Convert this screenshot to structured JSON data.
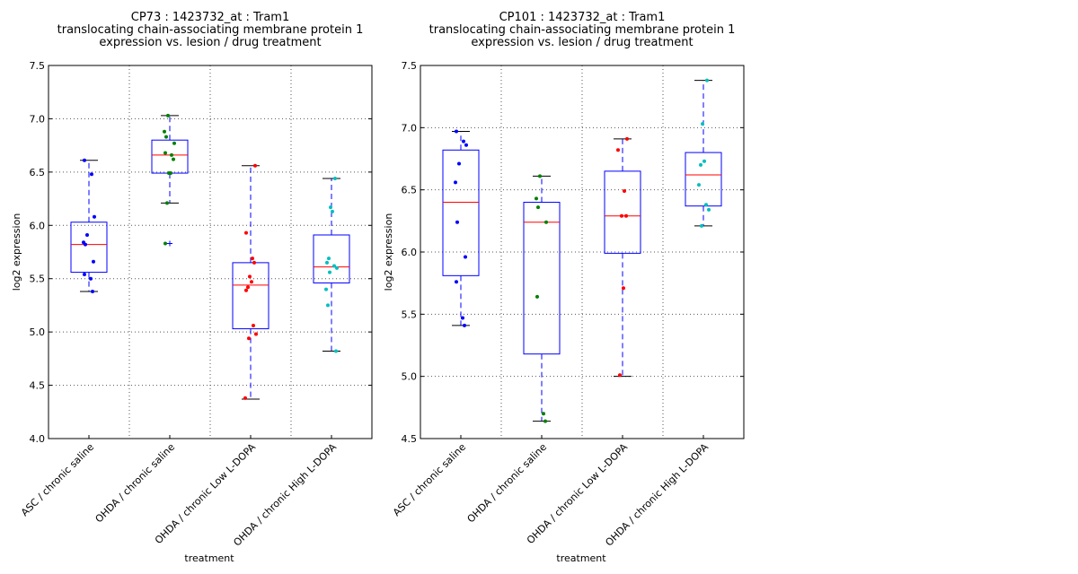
{
  "chart_data": [
    {
      "type": "box",
      "title": [
        "CP73 : 1423732_at : Tram1",
        "translocating chain-associating membrane protein 1",
        "expression vs. lesion / drug treatment"
      ],
      "xlabel": "treatment",
      "ylabel": "log2 expression",
      "ylim": [
        4.0,
        7.5
      ],
      "yticks": [
        "4.0",
        "4.5",
        "5.0",
        "5.5",
        "6.0",
        "6.5",
        "7.0",
        "7.5"
      ],
      "grid": true,
      "categories": [
        "ASC / chronic saline",
        "OHDA / chronic saline",
        "OHDA / chronic Low L-DOPA",
        "OHDA / chronic High L-DOPA"
      ],
      "point_colors": [
        "#0000ff",
        "#008000",
        "#ff0000",
        "#00bfbf"
      ],
      "boxes": [
        {
          "q1": 5.56,
          "median": 5.82,
          "q3": 6.03,
          "whisker_low": 5.38,
          "whisker_high": 6.61,
          "fliers": []
        },
        {
          "q1": 6.49,
          "median": 6.66,
          "q3": 6.8,
          "whisker_low": 6.21,
          "whisker_high": 7.03,
          "fliers": [
            5.83
          ]
        },
        {
          "q1": 5.03,
          "median": 5.44,
          "q3": 5.65,
          "whisker_low": 4.37,
          "whisker_high": 6.56,
          "fliers": []
        },
        {
          "q1": 5.46,
          "median": 5.61,
          "q3": 5.91,
          "whisker_low": 4.82,
          "whisker_high": 6.44,
          "fliers": []
        }
      ],
      "points": [
        [
          6.61,
          6.48,
          6.08,
          5.91,
          5.84,
          5.82,
          5.66,
          5.54,
          5.5,
          5.38
        ],
        [
          7.03,
          6.88,
          6.83,
          6.77,
          6.68,
          6.66,
          6.62,
          6.49,
          6.49,
          6.21,
          5.83
        ],
        [
          6.56,
          5.93,
          5.69,
          5.65,
          5.52,
          5.47,
          5.42,
          5.39,
          5.06,
          4.98,
          4.94,
          4.38
        ],
        [
          6.44,
          6.17,
          6.13,
          5.69,
          5.65,
          5.62,
          5.6,
          5.56,
          5.4,
          5.25,
          4.82
        ]
      ]
    },
    {
      "type": "box",
      "title": [
        "CP101 : 1423732_at : Tram1",
        "translocating chain-associating membrane protein 1",
        "expression vs. lesion / drug treatment"
      ],
      "xlabel": "treatment",
      "ylabel": "log2 expression",
      "ylim": [
        4.5,
        7.5
      ],
      "yticks": [
        "4.5",
        "5.0",
        "5.5",
        "6.0",
        "6.5",
        "7.0",
        "7.5"
      ],
      "grid": true,
      "categories": [
        "ASC / chronic saline",
        "OHDA / chronic saline",
        "OHDA / chronic Low L-DOPA",
        "OHDA / chronic High L-DOPA"
      ],
      "point_colors": [
        "#0000ff",
        "#008000",
        "#ff0000",
        "#00bfbf"
      ],
      "boxes": [
        {
          "q1": 5.81,
          "median": 6.4,
          "q3": 6.82,
          "whisker_low": 5.41,
          "whisker_high": 6.97,
          "fliers": []
        },
        {
          "q1": 5.18,
          "median": 6.24,
          "q3": 6.4,
          "whisker_low": 4.64,
          "whisker_high": 6.61,
          "fliers": []
        },
        {
          "q1": 5.99,
          "median": 6.29,
          "q3": 6.65,
          "whisker_low": 5.0,
          "whisker_high": 6.91,
          "fliers": []
        },
        {
          "q1": 6.37,
          "median": 6.62,
          "q3": 6.8,
          "whisker_low": 6.21,
          "whisker_high": 7.38,
          "fliers": []
        }
      ],
      "points": [
        [
          6.97,
          6.89,
          6.86,
          6.71,
          6.56,
          6.24,
          5.96,
          5.76,
          5.47,
          5.41
        ],
        [
          6.61,
          6.43,
          6.36,
          6.24,
          5.64,
          4.7,
          4.64
        ],
        [
          6.91,
          6.82,
          6.49,
          6.29,
          6.29,
          5.71,
          5.01
        ],
        [
          7.38,
          7.03,
          6.73,
          6.7,
          6.54,
          6.38,
          6.34,
          6.21
        ]
      ]
    }
  ]
}
